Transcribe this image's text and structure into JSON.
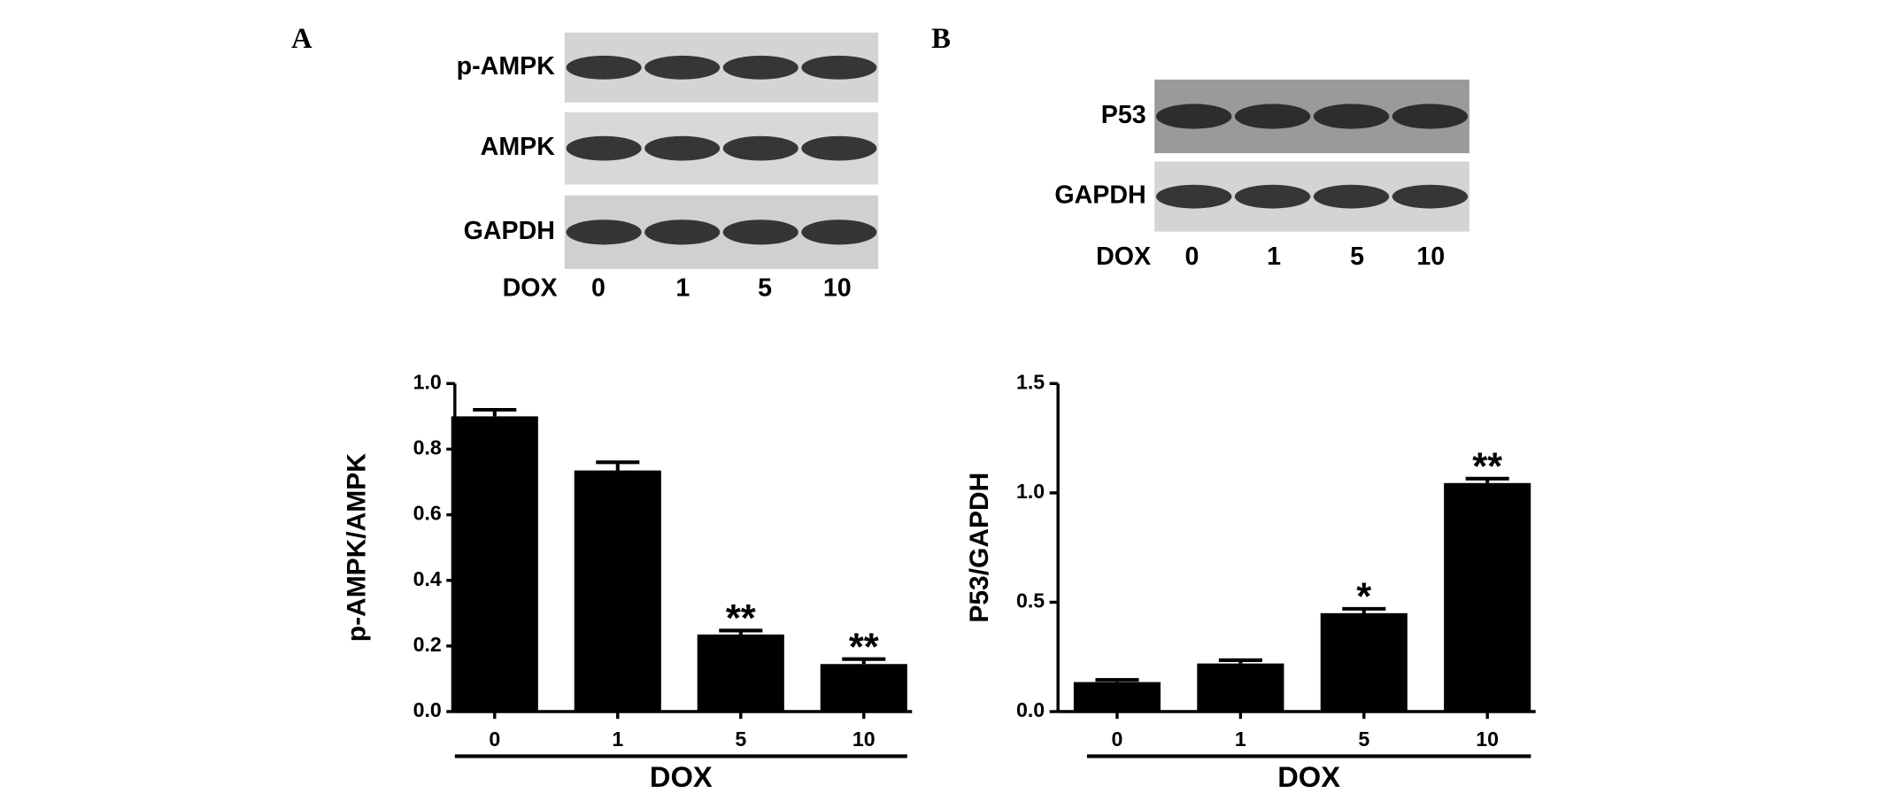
{
  "panel_labels": [
    "A",
    "B"
  ],
  "blots": [
    {
      "rows": [
        "p-AMPK",
        "AMPK",
        "GAPDH"
      ],
      "lane_title": "DOX",
      "lanes": [
        "0",
        "1",
        "5",
        "10"
      ]
    },
    {
      "rows": [
        "P53",
        "GAPDH"
      ],
      "lane_title": "DOX",
      "lanes": [
        "0",
        "1",
        "5",
        "10"
      ]
    }
  ],
  "chart_data": [
    {
      "type": "bar",
      "y_label": "p-AMPK/AMPK",
      "x_label": "DOX",
      "categories": [
        "0",
        "1",
        "5",
        "10"
      ],
      "values": [
        0.9,
        0.735,
        0.235,
        0.145
      ],
      "errors": [
        0.02,
        0.025,
        0.012,
        0.015
      ],
      "significance": [
        null,
        null,
        "**",
        "**"
      ],
      "color": "#000000",
      "ylim": [
        0,
        1.0
      ],
      "yticks": [
        {
          "value": 0,
          "label": "0.0"
        },
        0.2,
        0.4,
        0.6,
        0.8,
        {
          "value": 1.0,
          "label": "1.0"
        }
      ]
    },
    {
      "type": "bar",
      "y_label": "P53/GAPDH",
      "x_label": "DOX",
      "categories": [
        "0",
        "1",
        "5",
        "10"
      ],
      "values": [
        0.135,
        0.22,
        0.45,
        1.045
      ],
      "errors": [
        0.01,
        0.015,
        0.02,
        0.02
      ],
      "significance": [
        null,
        null,
        "*",
        "**"
      ],
      "color": "#000000",
      "ylim": [
        0,
        1.5
      ],
      "yticks": [
        {
          "value": 0,
          "label": "0.0"
        },
        0.5,
        {
          "value": 1.0,
          "label": "1.0"
        },
        1.5
      ]
    }
  ]
}
